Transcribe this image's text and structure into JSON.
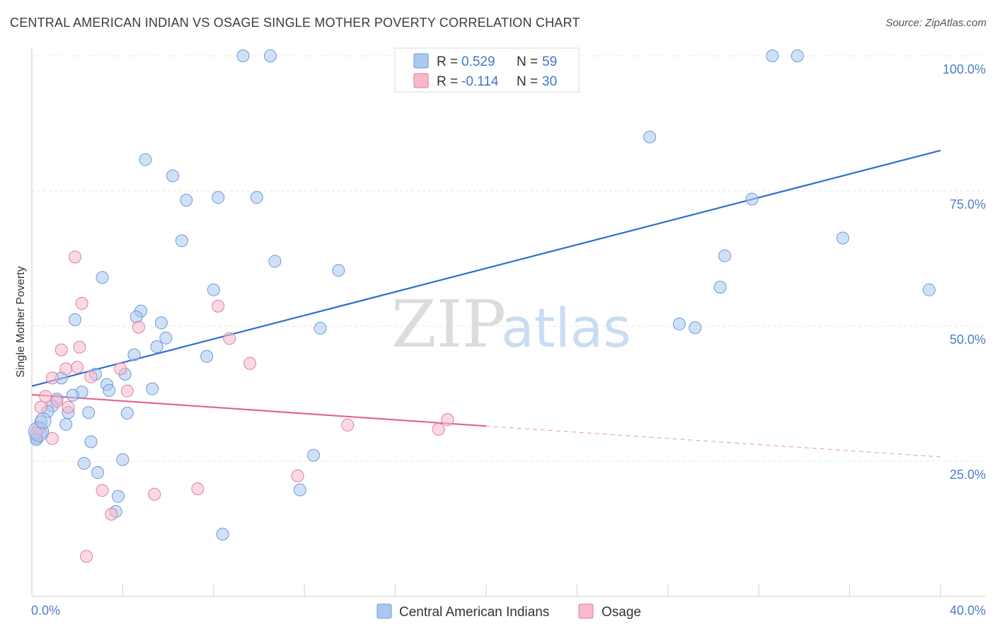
{
  "header": {
    "title": "CENTRAL AMERICAN INDIAN VS OSAGE SINGLE MOTHER POVERTY CORRELATION CHART",
    "source": "Source: ZipAtlas.com"
  },
  "watermark": {
    "zip": "ZIP",
    "atlas": "atlas"
  },
  "chart_data": {
    "type": "scatter",
    "ylabel": "Single Mother Poverty",
    "xlim": [
      0,
      40
    ],
    "ylim": [
      0,
      105
    ],
    "x_tick_labels": [
      "0.0%",
      "40.0%"
    ],
    "y_ticks": [
      {
        "value": 25,
        "label": "25.0%"
      },
      {
        "value": 50,
        "label": "50.0%"
      },
      {
        "value": 75,
        "label": "75.0%"
      },
      {
        "value": 100,
        "label": "100.0%"
      }
    ],
    "grid": true,
    "legend": [
      {
        "r_label": "R =",
        "r_value": "0.529",
        "n_label": "N =",
        "n_value": "59",
        "color": "#a9c8f0",
        "stroke": "#6a9ad8"
      },
      {
        "r_label": "R =",
        "r_value": "-0.114",
        "n_label": "N =",
        "n_value": "30",
        "color": "#f7b9cc",
        "stroke": "#e07b9d"
      }
    ],
    "series": [
      {
        "name": "Central American Indians",
        "color": "#a9c8f0",
        "stroke": "#6a9ad8",
        "trend": {
          "x0": 0,
          "y0": 38.9,
          "x1": 40,
          "y1": 82.5,
          "color": "#2e6fc9"
        },
        "points": [
          [
            9.3,
            100
          ],
          [
            10.5,
            100
          ],
          [
            32.6,
            100
          ],
          [
            33.7,
            100
          ],
          [
            27.2,
            85
          ],
          [
            5.0,
            80.8
          ],
          [
            6.2,
            77.8
          ],
          [
            6.8,
            73.3
          ],
          [
            8.2,
            73.8
          ],
          [
            9.9,
            73.8
          ],
          [
            31.7,
            73.5
          ],
          [
            35.7,
            66.3
          ],
          [
            6.6,
            65.8
          ],
          [
            30.5,
            63.0
          ],
          [
            10.7,
            62.0
          ],
          [
            13.5,
            60.3
          ],
          [
            3.1,
            59.0
          ],
          [
            39.5,
            56.7
          ],
          [
            30.3,
            57.2
          ],
          [
            8.0,
            56.7
          ],
          [
            4.8,
            52.8
          ],
          [
            4.6,
            51.7
          ],
          [
            1.9,
            51.2
          ],
          [
            5.7,
            50.6
          ],
          [
            28.5,
            50.4
          ],
          [
            29.2,
            49.7
          ],
          [
            12.7,
            49.6
          ],
          [
            5.9,
            47.8
          ],
          [
            5.5,
            46.2
          ],
          [
            4.5,
            44.7
          ],
          [
            7.7,
            44.4
          ],
          [
            4.1,
            41.1
          ],
          [
            2.8,
            41.1
          ],
          [
            1.3,
            40.4
          ],
          [
            3.3,
            39.2
          ],
          [
            3.4,
            38.1
          ],
          [
            5.3,
            38.4
          ],
          [
            2.2,
            37.8
          ],
          [
            1.8,
            37.2
          ],
          [
            1.1,
            36.5
          ],
          [
            0.9,
            35.2
          ],
          [
            0.7,
            34.2
          ],
          [
            1.6,
            34.0
          ],
          [
            2.5,
            34.0
          ],
          [
            4.2,
            33.9
          ],
          [
            0.4,
            32.3
          ],
          [
            1.5,
            31.8
          ],
          [
            0.4,
            30.3
          ],
          [
            0.2,
            29.3
          ],
          [
            2.6,
            28.6
          ],
          [
            12.4,
            26.1
          ],
          [
            4.0,
            25.3
          ],
          [
            2.3,
            24.6
          ],
          [
            2.9,
            22.9
          ],
          [
            11.8,
            19.7
          ],
          [
            3.8,
            18.5
          ],
          [
            3.7,
            15.7
          ],
          [
            8.4,
            11.5
          ],
          [
            0.2,
            29.0
          ]
        ]
      },
      {
        "name": "Osage",
        "color": "#f7b9cc",
        "stroke": "#e07b9d",
        "trend": {
          "x0": 0,
          "y0": 37.3,
          "x1": 20,
          "y1": 31.5,
          "dash_x1": 40,
          "dash_y1": 25.8,
          "color": "#e0668f"
        },
        "points": [
          [
            1.9,
            62.8
          ],
          [
            2.2,
            54.2
          ],
          [
            8.2,
            53.7
          ],
          [
            4.7,
            49.8
          ],
          [
            8.7,
            47.7
          ],
          [
            2.1,
            46.1
          ],
          [
            1.3,
            45.6
          ],
          [
            9.6,
            43.1
          ],
          [
            2.0,
            42.4
          ],
          [
            3.9,
            42.1
          ],
          [
            1.5,
            42.1
          ],
          [
            0.9,
            40.4
          ],
          [
            2.6,
            40.6
          ],
          [
            4.2,
            38.0
          ],
          [
            0.6,
            37.0
          ],
          [
            1.1,
            36.1
          ],
          [
            0.4,
            35.0
          ],
          [
            1.6,
            35.0
          ],
          [
            0.3,
            31.0
          ],
          [
            0.9,
            29.2
          ],
          [
            18.3,
            32.7
          ],
          [
            13.9,
            31.7
          ],
          [
            17.9,
            30.9
          ],
          [
            11.7,
            22.3
          ],
          [
            7.3,
            19.9
          ],
          [
            3.1,
            19.6
          ],
          [
            5.4,
            18.9
          ],
          [
            3.5,
            15.2
          ],
          [
            2.4,
            7.4
          ],
          [
            0.2,
            30.2
          ]
        ]
      }
    ]
  }
}
